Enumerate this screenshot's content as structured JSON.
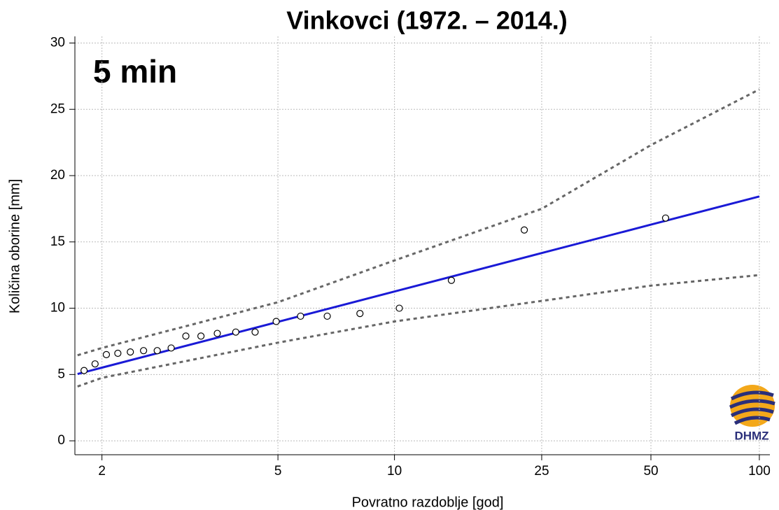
{
  "chart_data": {
    "type": "return-period",
    "title": "Vinkovci (1972. – 2014.)",
    "annotation": "5 min",
    "xlabel": "Povratno razdoblje [god]",
    "ylabel": "Količina oborine [mm]",
    "logo": "DHMZ",
    "xscale": "gumbel",
    "xlim": [
      1.78,
      107
    ],
    "ylim": [
      -1.05,
      30.5
    ],
    "xticks": [
      2,
      5,
      10,
      25,
      50,
      100
    ],
    "yticks": [
      0,
      5,
      10,
      15,
      20,
      25,
      30
    ],
    "grid": true,
    "points": {
      "color": "#000000",
      "x": [
        1.85,
        1.94,
        2.04,
        2.15,
        2.28,
        2.43,
        2.6,
        2.79,
        3.01,
        3.26,
        3.56,
        3.94,
        4.39,
        4.95,
        5.7,
        6.67,
        8.11,
        10.3,
        14.2,
        22.4,
        54.9
      ],
      "values": [
        5.3,
        5.8,
        6.5,
        6.6,
        6.7,
        6.8,
        6.8,
        7.0,
        7.9,
        7.9,
        8.1,
        8.2,
        8.2,
        9.0,
        9.4,
        9.4,
        9.6,
        10.0,
        12.1,
        15.9,
        16.8
      ]
    },
    "curve_x": [
      1.8,
      2,
      5,
      10,
      25,
      50,
      100
    ],
    "series": [
      {
        "style": "solid",
        "color": "#1a1ad6",
        "values": [
          5.04,
          5.52,
          8.97,
          11.26,
          14.16,
          16.3,
          18.43
        ]
      },
      {
        "style": "dashed",
        "color": "#666666",
        "values": [
          6.45,
          7.0,
          10.45,
          13.6,
          17.5,
          22.3,
          26.5
        ]
      },
      {
        "style": "dashed",
        "color": "#666666",
        "values": [
          4.1,
          4.75,
          7.4,
          9.0,
          10.55,
          11.7,
          12.5
        ]
      }
    ]
  }
}
